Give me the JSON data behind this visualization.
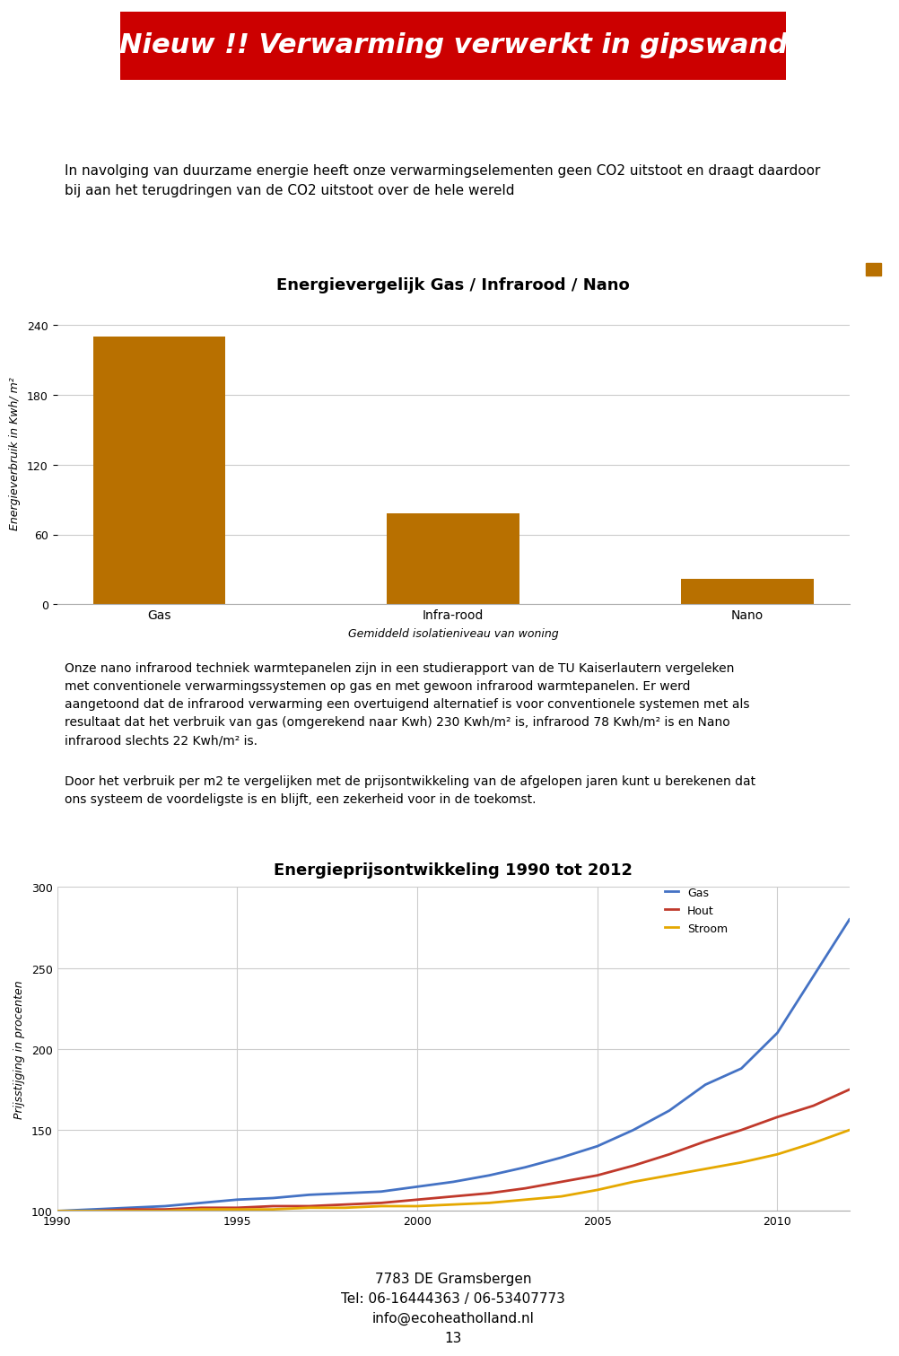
{
  "page_bg": "#ffffff",
  "header_text": "Nieuw !! Verwarming verwerkt in gipswand",
  "header_bg": "#cc0000",
  "header_text_color": "#ffffff",
  "header_fontsize": 22,
  "intro_text": "In navolging van duurzame energie heeft onze verwarmingselementen geen CO2 uitstoot en draagt daardoor\nbij aan het terugdringen van de CO2 uitstoot over de hele wereld",
  "bar_chart_title": "Energievergelijk Gas / Infrarood / Nano",
  "bar_categories": [
    "Gas",
    "Infra-rood",
    "Nano"
  ],
  "bar_values": [
    230,
    78,
    22
  ],
  "bar_color": "#b87000",
  "bar_ylabel": "Energieverbruik in Kwh/ m²",
  "bar_xlabel": "Gemiddeld isolatieniveau van woning",
  "bar_ylim": [
    0,
    260
  ],
  "bar_yticks": [
    0,
    60,
    120,
    180,
    240
  ],
  "mid_text1": "Onze nano infrarood techniek warmtepanelen zijn in een studierapport van de TU Kaiserlautern vergeleken\nmet conventionele verwarmingssystemen op gas en met gewoon infrarood warmtepanelen. Er werd\naangetoond dat de infrarood verwarming een overtuigend alternatief is voor conventionele systemen met als\nresultaat dat het verbruik van gas (omgerekend naar Kwh) 230 Kwh/m² is, infrarood 78 Kwh/m² is en Nano\ninfrarood slechts 22 Kwh/m² is.",
  "mid_text2": "Door het verbruik per m2 te vergelijken met de prijsontwikkeling van de afgelopen jaren kunt u berekenen dat\nons systeem de voordeligste is en blijft, een zekerheid voor in de toekomst.",
  "line_chart_title": "Energieprijsontwikkeling 1990 tot 2012",
  "line_ylabel": "Prijsstijging in procenten",
  "line_ylim": [
    100,
    300
  ],
  "line_yticks": [
    100,
    150,
    200,
    250,
    300
  ],
  "line_xticks": [
    1990,
    1995,
    2000,
    2005,
    2010
  ],
  "gas_years": [
    1990,
    1991,
    1992,
    1993,
    1994,
    1995,
    1996,
    1997,
    1998,
    1999,
    2000,
    2001,
    2002,
    2003,
    2004,
    2005,
    2006,
    2007,
    2008,
    2009,
    2010,
    2011,
    2012
  ],
  "gas_values": [
    100,
    101,
    102,
    103,
    105,
    107,
    108,
    110,
    111,
    112,
    115,
    118,
    122,
    127,
    133,
    140,
    150,
    162,
    178,
    188,
    210,
    245,
    280
  ],
  "hout_values": [
    100,
    100,
    101,
    101,
    102,
    102,
    103,
    103,
    104,
    105,
    107,
    109,
    111,
    114,
    118,
    122,
    128,
    135,
    143,
    150,
    158,
    165,
    175
  ],
  "stroom_values": [
    100,
    100,
    100,
    100,
    101,
    101,
    101,
    102,
    102,
    103,
    103,
    104,
    105,
    107,
    109,
    113,
    118,
    122,
    126,
    130,
    135,
    142,
    150
  ],
  "gas_color": "#4472c4",
  "hout_color": "#c0392b",
  "stroom_color": "#e5a800",
  "legend_gas": "Gas",
  "legend_hout": "Hout",
  "legend_stroom": "Stroom",
  "footer_line1": "7783 DE Gramsbergen",
  "footer_line2": "Tel: 06-16444363 / 06-53407773",
  "footer_line3": "info@ecoheatholland.nl",
  "footer_page": "13"
}
